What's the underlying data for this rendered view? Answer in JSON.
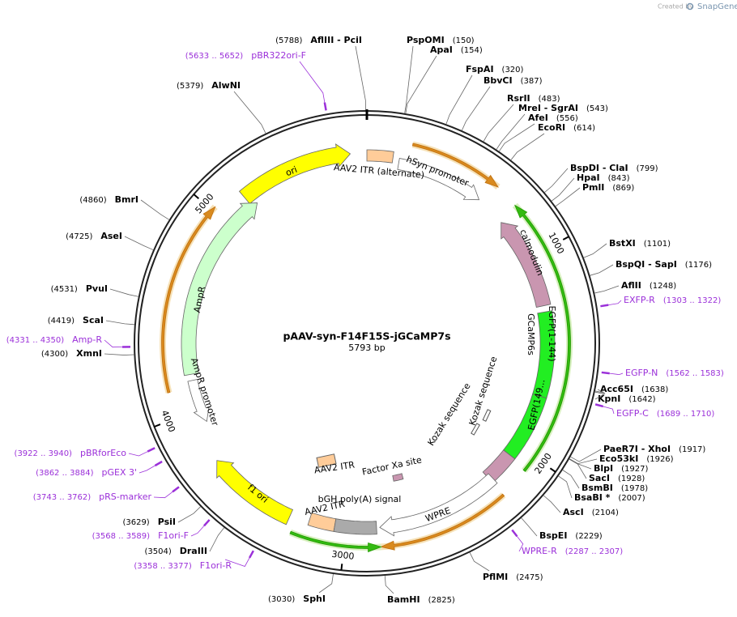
{
  "credit": {
    "prefix": "Created by",
    "brand": "SnapGene"
  },
  "title": "pAAV-syn-F14F15S-jGCaMP7s",
  "length": "5793 bp",
  "ticks": [
    1000,
    2000,
    3000,
    4000,
    5000
  ],
  "sites": [
    {
      "name": "PspOMI",
      "position": "(150)"
    },
    {
      "name": "ApaI",
      "position": "(154)"
    },
    {
      "name": "FspAI",
      "position": "(320)"
    },
    {
      "name": "BbvCI",
      "position": "(387)"
    },
    {
      "name": "RsrII",
      "position": "(483)"
    },
    {
      "name": "MreI - SgrAI",
      "position": "(543)"
    },
    {
      "name": "AfeI",
      "position": "(556)"
    },
    {
      "name": "EcoRI",
      "position": "(614)"
    },
    {
      "name": "BspDI - ClaI",
      "position": "(799)"
    },
    {
      "name": "HpaI",
      "position": "(843)"
    },
    {
      "name": "PmlI",
      "position": "(869)"
    },
    {
      "name": "BstXI",
      "position": "(1101)"
    },
    {
      "name": "BspQI - SapI",
      "position": "(1176)"
    },
    {
      "name": "AflII",
      "position": "(1248)"
    },
    {
      "name": "Acc65I",
      "position": "(1638)"
    },
    {
      "name": "KpnI",
      "position": "(1642)"
    },
    {
      "name": "PaeR7I - XhoI",
      "position": "(1917)"
    },
    {
      "name": "Eco53kI",
      "position": "(1926)"
    },
    {
      "name": "BlpI",
      "position": "(1927)"
    },
    {
      "name": "SacI",
      "position": "(1928)"
    },
    {
      "name": "BsmBI",
      "position": "(1978)"
    },
    {
      "name": "BsaBI *",
      "position": "(2007)"
    },
    {
      "name": "AscI",
      "position": "(2104)"
    },
    {
      "name": "BspEI",
      "position": "(2229)"
    },
    {
      "name": "PflMI",
      "position": "(2475)"
    },
    {
      "name": "BamHI",
      "position": "(2825)"
    },
    {
      "name": "SphI",
      "position": "(3030)"
    },
    {
      "name": "DraIII",
      "position": "(3504)"
    },
    {
      "name": "PsiI",
      "position": "(3629)"
    },
    {
      "name": "XmnI",
      "position": "(4300)"
    },
    {
      "name": "ScaI",
      "position": "(4419)"
    },
    {
      "name": "PvuI",
      "position": "(4531)"
    },
    {
      "name": "AseI",
      "position": "(4725)"
    },
    {
      "name": "BmrI",
      "position": "(4860)"
    },
    {
      "name": "AlwNI",
      "position": "(5379)"
    },
    {
      "name": "AflIII - PciI",
      "position": "(5788)"
    }
  ],
  "primers": [
    {
      "name": "EXFP-R",
      "range": "(1303 .. 1322)"
    },
    {
      "name": "EGFP-N",
      "range": "(1562 .. 1583)"
    },
    {
      "name": "EGFP-C",
      "range": "(1689 .. 1710)"
    },
    {
      "name": "WPRE-R",
      "range": "(2287 .. 2307)"
    },
    {
      "name": "F1ori-R",
      "range": "(3358 .. 3377)"
    },
    {
      "name": "F1ori-F",
      "range": "(3568 .. 3589)"
    },
    {
      "name": "pRS-marker",
      "range": "(3743 .. 3762)"
    },
    {
      "name": "pGEX 3'",
      "range": "(3862 .. 3884)"
    },
    {
      "name": "pBRforEco",
      "range": "(3922 .. 3940)"
    },
    {
      "name": "Amp-R",
      "range": "(4331 .. 4350)"
    },
    {
      "name": "pBR322ori-F",
      "range": "(5633 .. 5652)"
    }
  ],
  "features": [
    {
      "label": "ori"
    },
    {
      "label": "AAV2 ITR (alternate)"
    },
    {
      "label": "hSyn promoter"
    },
    {
      "label": "calmodulin"
    },
    {
      "label": "GCaMP6s"
    },
    {
      "label": "EGFP(1-144)"
    },
    {
      "label": "EGFP(149..."
    },
    {
      "label": "Kozak sequence"
    },
    {
      "label": "Kozak sequence"
    },
    {
      "label": "AmpR"
    },
    {
      "label": "AmpR promoter"
    },
    {
      "label": "f1 ori"
    },
    {
      "label": "AAV2 ITR"
    },
    {
      "label": "Factor Xa site"
    },
    {
      "label": "bGH poly(A) signal"
    },
    {
      "label": "AAV2 ITR"
    },
    {
      "label": "WPRE"
    }
  ]
}
